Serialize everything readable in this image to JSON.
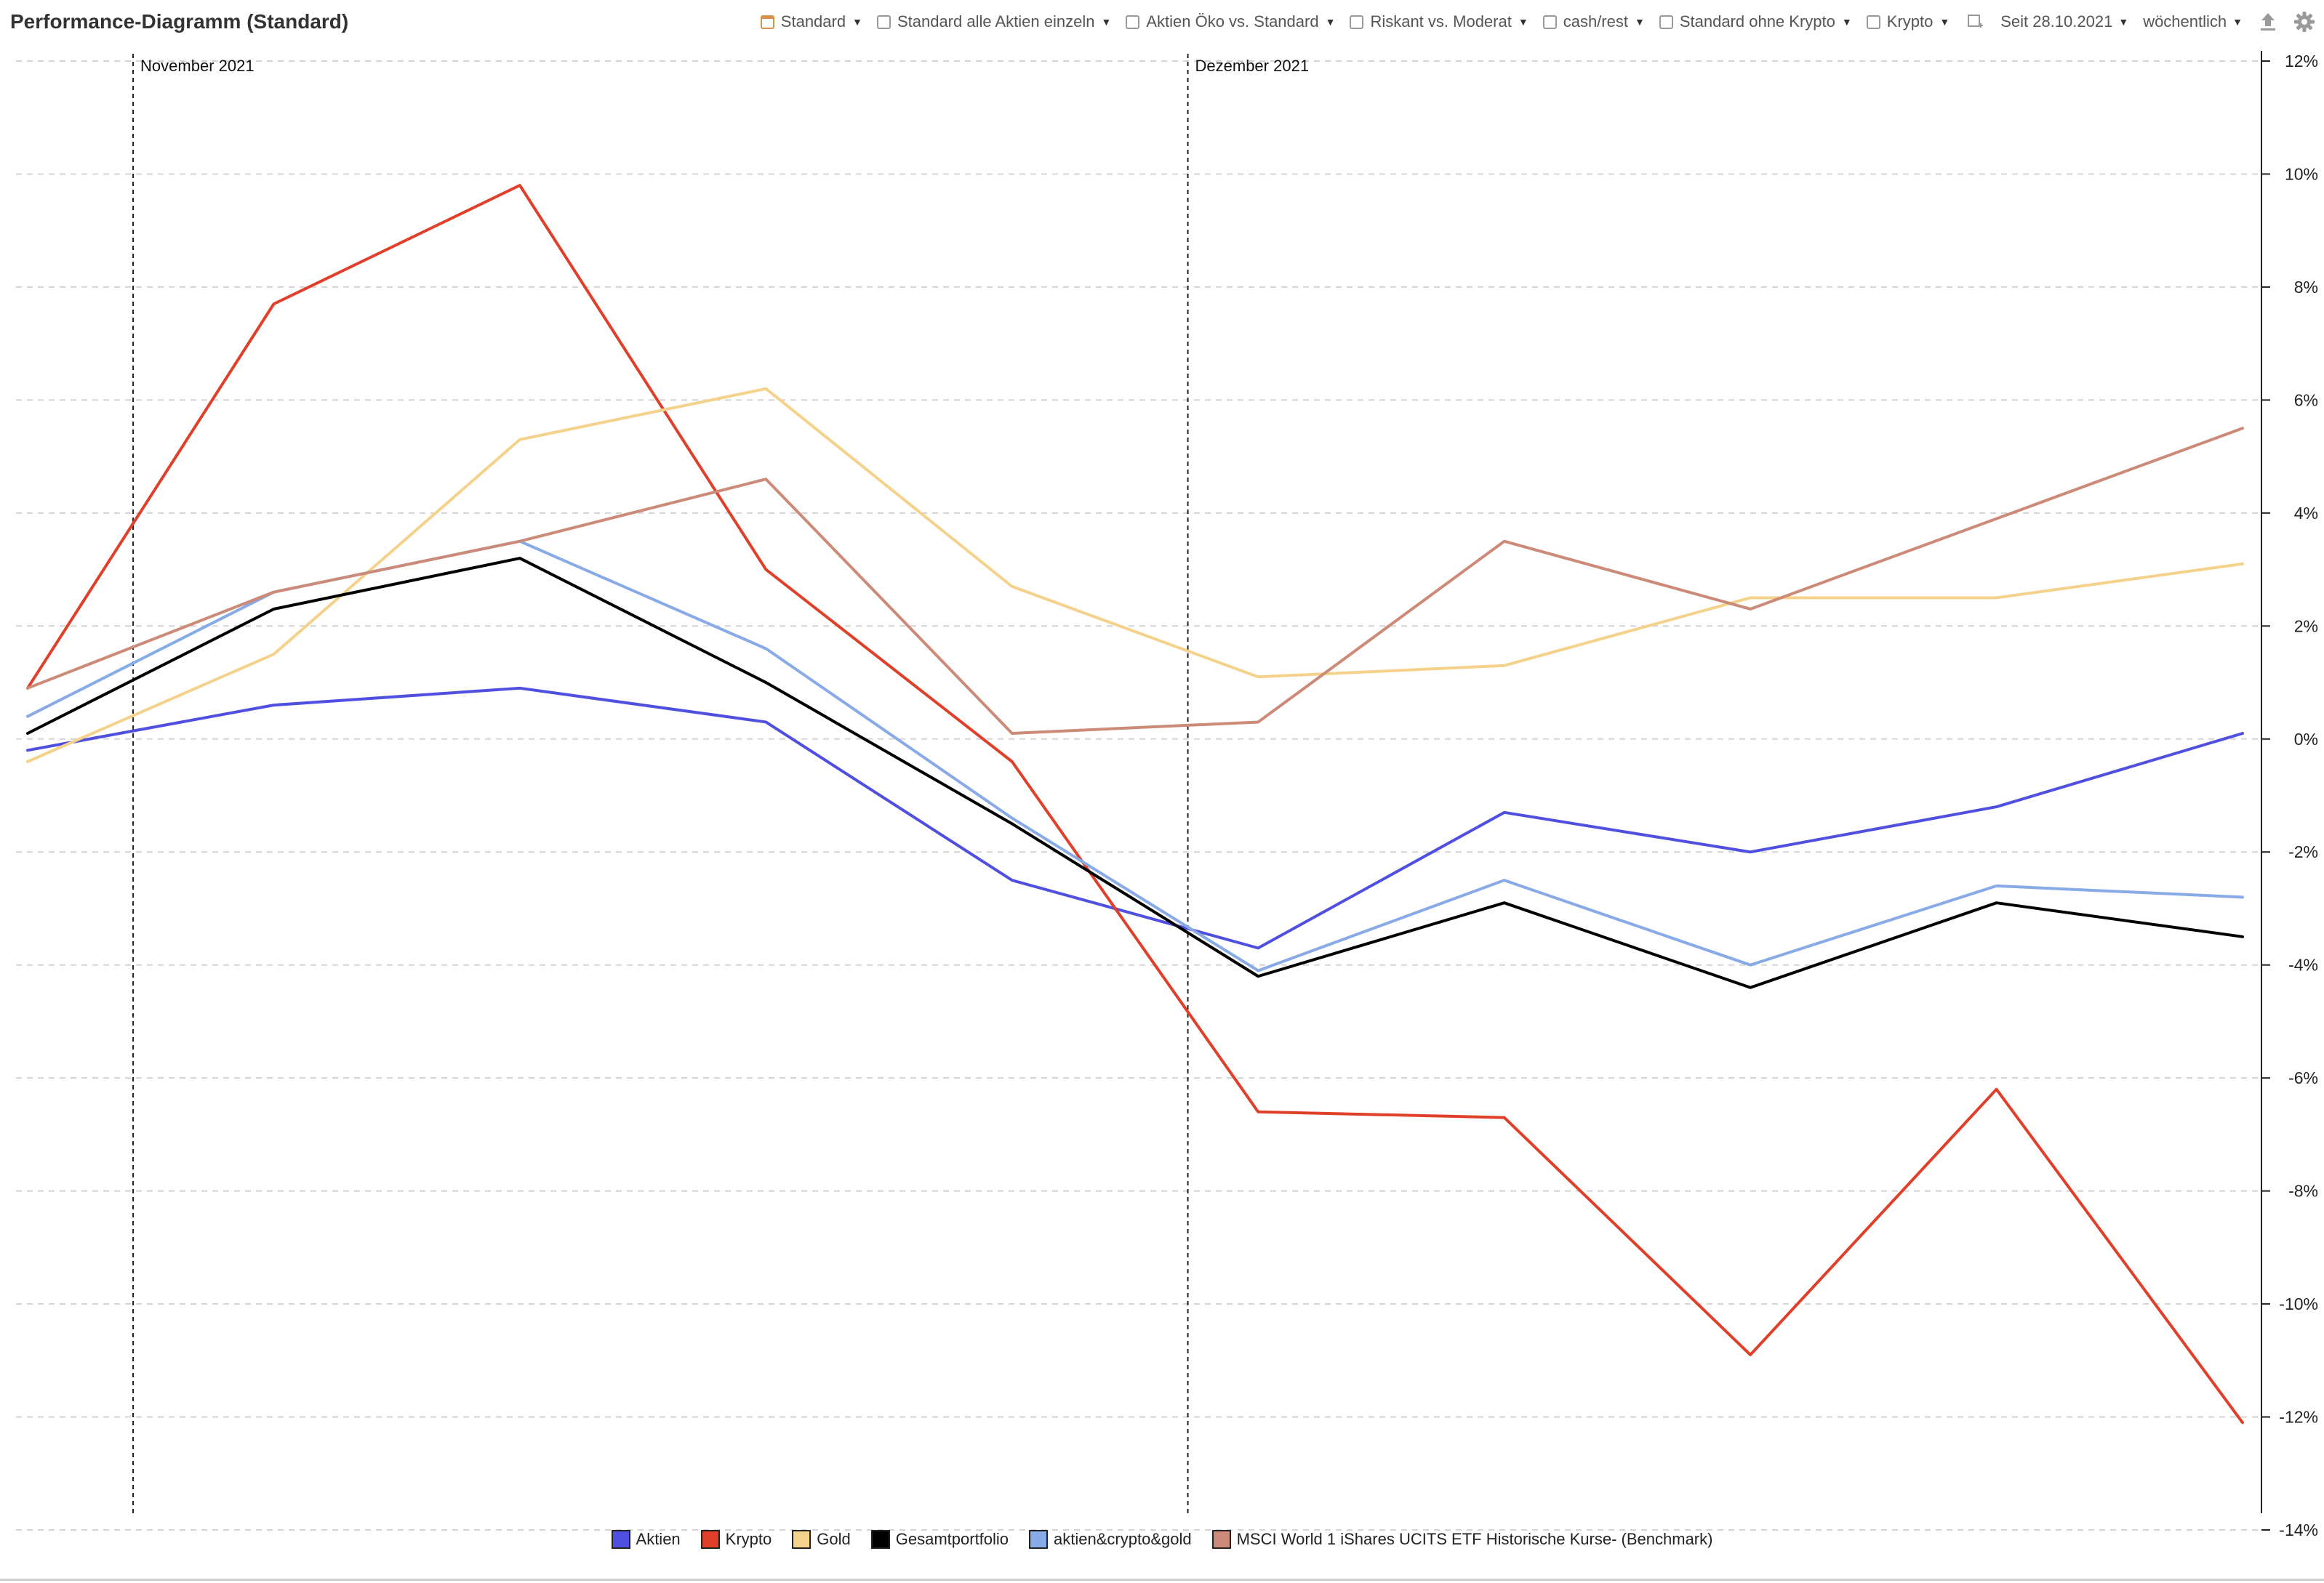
{
  "header": {
    "title": "Performance-Diagramm (Standard)"
  },
  "toolbar": {
    "presets": [
      {
        "label": "Standard",
        "active": true
      },
      {
        "label": "Standard alle Aktien einzeln",
        "active": false
      },
      {
        "label": "Aktien Öko vs. Standard",
        "active": false
      },
      {
        "label": "Riskant vs. Moderat",
        "active": false
      },
      {
        "label": "cash/rest",
        "active": false
      },
      {
        "label": "Standard ohne Krypto",
        "active": false
      },
      {
        "label": "Krypto",
        "active": false
      }
    ],
    "add_icon": "add-preset-icon",
    "since_label": "Seit 28.10.2021",
    "interval_label": "wöchentlich",
    "export_icon": "upload-icon",
    "settings_icon": "gear-icon"
  },
  "chart_data": {
    "type": "line",
    "title": "",
    "x": [
      "2021-10-29",
      "2021-11-05",
      "2021-11-12",
      "2021-11-19",
      "2021-11-26",
      "2021-12-03",
      "2021-12-10",
      "2021-12-17",
      "2021-12-24",
      "2021-12-31"
    ],
    "y_axis": {
      "min": -14,
      "max": 12,
      "step": 2,
      "suffix": "%",
      "position": "right"
    },
    "tick_labels": [
      "12%",
      "10%",
      "8%",
      "6%",
      "4%",
      "2%",
      "0%",
      "-2%",
      "-4%",
      "-6%",
      "-8%",
      "-10%",
      "-12%",
      "-14%"
    ],
    "month_markers": [
      {
        "label": "November 2021",
        "date": "2021-11-01"
      },
      {
        "label": "Dezember 2021",
        "date": "2021-12-01"
      }
    ],
    "grid": true,
    "legend": "bottom",
    "series": [
      {
        "name": "Aktien",
        "color": "#5050e0",
        "values": [
          -0.2,
          0.6,
          0.9,
          0.3,
          -2.5,
          -3.7,
          -1.3,
          -2.0,
          -1.2,
          0.1
        ]
      },
      {
        "name": "Krypto",
        "color": "#e0402a",
        "values": [
          0.9,
          7.7,
          9.8,
          3.0,
          -0.4,
          -6.6,
          -6.7,
          -10.9,
          -6.2,
          -12.1
        ]
      },
      {
        "name": "Gold",
        "color": "#f5d28c",
        "values": [
          -0.4,
          1.5,
          5.3,
          6.2,
          2.7,
          1.1,
          1.3,
          2.5,
          2.5,
          3.1
        ]
      },
      {
        "name": "Gesamtportfolio",
        "color": "#000000",
        "values": [
          0.1,
          2.3,
          3.2,
          1.0,
          -1.5,
          -4.2,
          -2.9,
          -4.4,
          -2.9,
          -3.5
        ]
      },
      {
        "name": "aktien&crypto&gold",
        "color": "#88aae6",
        "values": [
          0.4,
          2.6,
          3.5,
          1.6,
          -1.4,
          -4.1,
          -2.5,
          -4.0,
          -2.6,
          -2.8
        ]
      },
      {
        "name": "MSCI World 1  iShares UCITS ETF Historische Kurse- (Benchmark)",
        "color": "#cc8a78",
        "values": [
          0.9,
          2.6,
          3.5,
          4.6,
          0.1,
          0.3,
          3.5,
          2.3,
          3.9,
          5.5
        ]
      }
    ]
  }
}
